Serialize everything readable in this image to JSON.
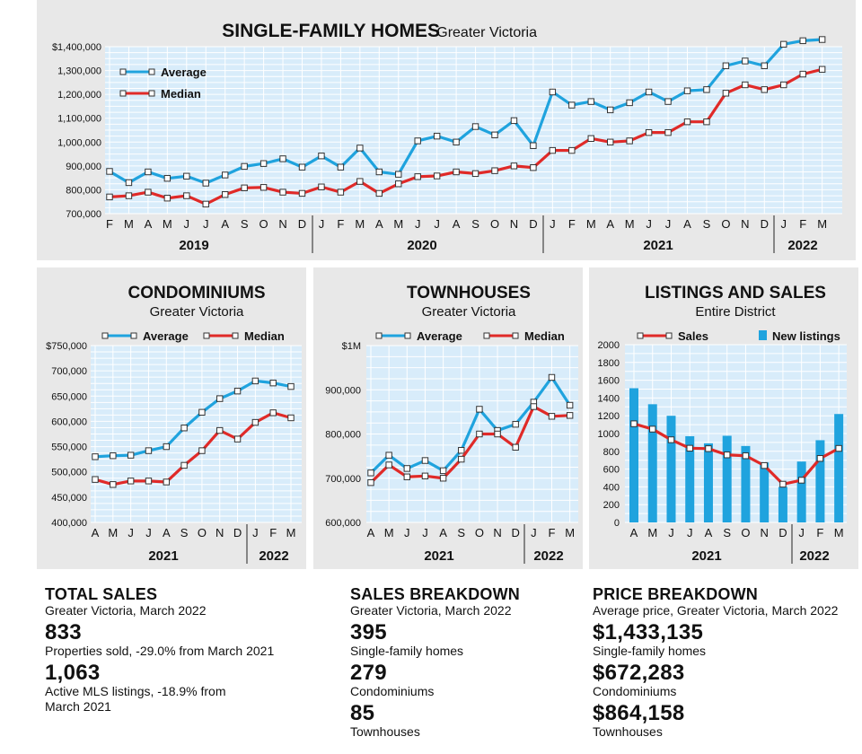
{
  "chart_data": [
    {
      "id": "sfh",
      "type": "line",
      "title": "SINGLE-FAMILY HOMES",
      "subtitle": "Greater Victoria",
      "x": [
        "F",
        "M",
        "A",
        "M",
        "J",
        "J",
        "A",
        "S",
        "O",
        "N",
        "D",
        "J",
        "F",
        "M",
        "A",
        "M",
        "J",
        "J",
        "A",
        "S",
        "O",
        "N",
        "D",
        "J",
        "F",
        "M",
        "A",
        "M",
        "J",
        "J",
        "A",
        "S",
        "O",
        "N",
        "D",
        "J",
        "F",
        "M"
      ],
      "year_labels": [
        "2019",
        "2020",
        "2021",
        "2022"
      ],
      "ylim": [
        700000,
        1400000
      ],
      "yticks": [
        700000,
        800000,
        900000,
        1000000,
        1100000,
        1200000,
        1300000,
        1400000
      ],
      "ytick_labels": [
        "700,000",
        "800,000",
        "900,000",
        "1,000,000",
        "1,100,000",
        "1,200,000",
        "1,300,000",
        "$1,400,000"
      ],
      "legend": "top-left",
      "series": [
        {
          "name": "Average",
          "color": "#1fa3de",
          "values": [
            877000,
            830000,
            875000,
            848000,
            857000,
            828000,
            862000,
            898000,
            910000,
            930000,
            895000,
            942000,
            895000,
            975000,
            875000,
            865000,
            1005000,
            1025000,
            1000000,
            1065000,
            1030000,
            1090000,
            985000,
            1210000,
            1155000,
            1170000,
            1135000,
            1165000,
            1210000,
            1170000,
            1215000,
            1220000,
            1320000,
            1340000,
            1320000,
            1410000,
            1425000,
            1430000
          ]
        },
        {
          "name": "Median",
          "color": "#e02a28",
          "values": [
            770000,
            775000,
            790000,
            765000,
            775000,
            740000,
            780000,
            808000,
            810000,
            790000,
            785000,
            812000,
            790000,
            835000,
            785000,
            825000,
            855000,
            858000,
            875000,
            868000,
            880000,
            900000,
            893000,
            965000,
            965000,
            1015000,
            1000000,
            1005000,
            1040000,
            1040000,
            1085000,
            1085000,
            1205000,
            1240000,
            1220000,
            1240000,
            1285000,
            1305000
          ]
        }
      ]
    },
    {
      "id": "condo",
      "type": "line",
      "title": "CONDOMINIUMS",
      "subtitle": "Greater Victoria",
      "x": [
        "A",
        "M",
        "J",
        "J",
        "A",
        "S",
        "O",
        "N",
        "D",
        "J",
        "F",
        "M"
      ],
      "year_labels": [
        "2021",
        "2022"
      ],
      "ylim": [
        400000,
        750000
      ],
      "yticks": [
        400000,
        450000,
        500000,
        550000,
        600000,
        650000,
        700000,
        750000
      ],
      "ytick_labels": [
        "400,000",
        "450,000",
        "500,000",
        "550,000",
        "600,000",
        "650,000",
        "700,000",
        "$750,000"
      ],
      "legend": "top",
      "series": [
        {
          "name": "Average",
          "color": "#1fa3de",
          "values": [
            530000,
            532000,
            533000,
            542000,
            550000,
            587000,
            618000,
            645000,
            660000,
            680000,
            676000,
            669000
          ]
        },
        {
          "name": "Median",
          "color": "#e02a28",
          "values": [
            485000,
            475000,
            482000,
            482000,
            480000,
            513000,
            542000,
            582000,
            565000,
            598000,
            617000,
            607000
          ]
        }
      ]
    },
    {
      "id": "town",
      "type": "line",
      "title": "TOWNHOUSES",
      "subtitle": "Greater Victoria",
      "x": [
        "A",
        "M",
        "J",
        "J",
        "A",
        "S",
        "O",
        "N",
        "D",
        "J",
        "F",
        "M"
      ],
      "year_labels": [
        "2021",
        "2022"
      ],
      "ylim": [
        600000,
        1000000
      ],
      "yticks": [
        600000,
        700000,
        800000,
        900000,
        1000000
      ],
      "ytick_labels": [
        "600,000",
        "700,000",
        "800,000",
        "900,000",
        "$1M"
      ],
      "legend": "top",
      "series": [
        {
          "name": "Average",
          "color": "#1fa3de",
          "values": [
            712000,
            752000,
            722000,
            740000,
            717000,
            763000,
            856000,
            808000,
            822000,
            872000,
            928000,
            865000
          ]
        },
        {
          "name": "Median",
          "color": "#e02a28",
          "values": [
            690000,
            730000,
            703000,
            705000,
            700000,
            743000,
            800000,
            800000,
            770000,
            862000,
            840000,
            842000
          ]
        }
      ]
    },
    {
      "id": "listings",
      "type": "bar",
      "title": "LISTINGS AND SALES",
      "subtitle": "Entire District",
      "x": [
        "A",
        "M",
        "J",
        "J",
        "A",
        "S",
        "O",
        "N",
        "D",
        "J",
        "F",
        "M"
      ],
      "year_labels": [
        "2021",
        "2022"
      ],
      "ylim": [
        0,
        2000
      ],
      "yticks": [
        0,
        200,
        400,
        600,
        800,
        1000,
        1200,
        1400,
        1600,
        1800,
        2000
      ],
      "ytick_labels": [
        "0",
        "200",
        "400",
        "600",
        "800",
        "1000",
        "1200",
        "1400",
        "1600",
        "1800",
        "2000"
      ],
      "legend": "top",
      "series": [
        {
          "name": "New listings",
          "type": "bar",
          "color": "#1fa3de",
          "values": [
            1510,
            1330,
            1200,
            970,
            890,
            975,
            860,
            675,
            400,
            685,
            925,
            1220
          ]
        },
        {
          "name": "Sales",
          "type": "line",
          "color": "#e02a28",
          "values": [
            1110,
            1050,
            930,
            835,
            830,
            760,
            750,
            640,
            430,
            475,
            720,
            833
          ]
        }
      ]
    }
  ],
  "stats": {
    "total": {
      "heading": "TOTAL SALES",
      "sub": "Greater Victoria, March 2022",
      "v1": "833",
      "d1": "Properties sold, -29.0% from March 2021",
      "v2": "1,063",
      "d2": "Active MLS listings, -18.9% from March 2021"
    },
    "breakdown": {
      "heading": "SALES BREAKDOWN",
      "sub": "Greater Victoria, March 2022",
      "v1": "395",
      "d1": "Single-family homes",
      "v2": "279",
      "d2": "Condominiums",
      "v3": "85",
      "d3": "Townhouses"
    },
    "price": {
      "heading": "PRICE BREAKDOWN",
      "sub": "Average price, Greater Victoria, March 2022",
      "v1": "$1,433,135",
      "d1": "Single-family homes",
      "v2": "$672,283",
      "d2": "Condominiums",
      "v3": "$864,158",
      "d3": "Townhouses"
    }
  }
}
